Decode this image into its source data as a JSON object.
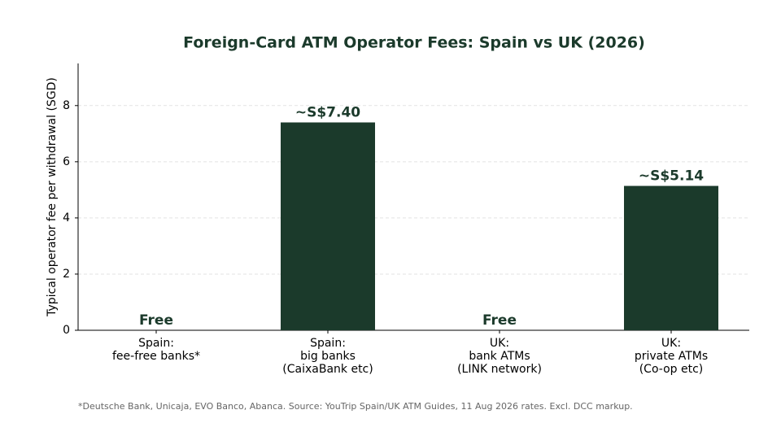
{
  "chart_data": {
    "type": "bar",
    "title": "Foreign-Card ATM Operator Fees: Spain vs UK (2026)",
    "ylabel": "Typical operator fee per withdrawal (SGD)",
    "categories": [
      "Spain:\nfee-free banks*",
      "Spain:\nbig banks\n(CaixaBank etc)",
      "UK:\nbank ATMs\n(LINK network)",
      "UK:\nprivate ATMs\n(Co-op etc)"
    ],
    "values": [
      0,
      7.4,
      0,
      5.14
    ],
    "value_labels": [
      "Free",
      "~S$7.40",
      "Free",
      "~S$5.14"
    ],
    "color": "#1b3a2b",
    "ylim": [
      0,
      9.5
    ],
    "yticks": [
      0,
      2,
      4,
      6,
      8
    ],
    "grid": true,
    "footnote": "*Deutsche Bank, Unicaja, EVO Banco, Abanca. Source: YouTrip Spain/UK ATM Guides, 11 Aug 2026 rates. Excl. DCC markup."
  }
}
